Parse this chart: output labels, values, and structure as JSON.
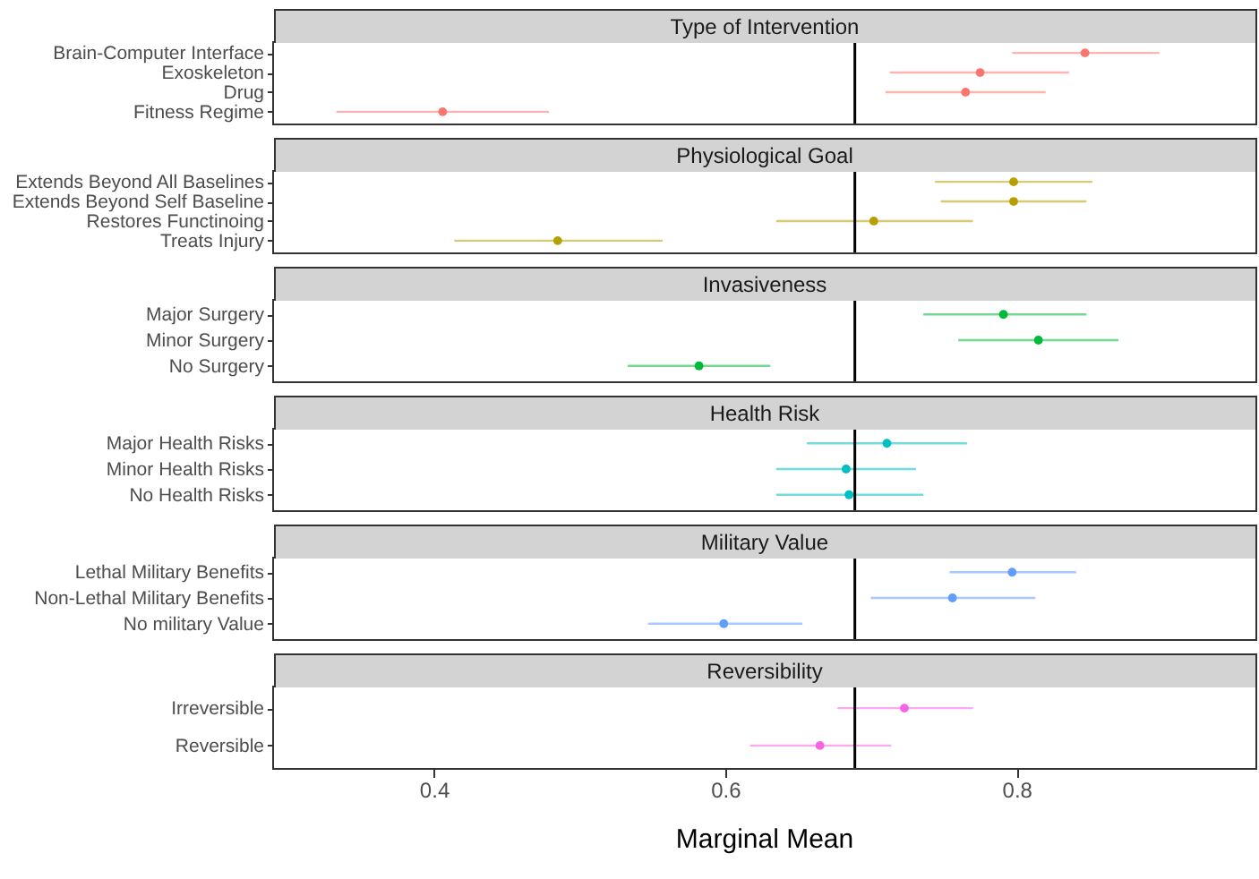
{
  "chart_data": [
    {
      "type": "scatter",
      "orientation": "horizontal",
      "title": "Type of Intervention",
      "categories": [
        "Brain-Computer Interface",
        "Exoskeleton",
        "Drug",
        "Fitness Regime"
      ],
      "values": [
        0.847,
        0.775,
        0.765,
        0.406
      ],
      "errors": [
        [
          0.797,
          0.898
        ],
        [
          0.713,
          0.836
        ],
        [
          0.71,
          0.82
        ],
        [
          0.333,
          0.479
        ]
      ],
      "color": "#f8766d",
      "xlim": [
        0.289,
        0.964
      ],
      "xticks": [
        0.4,
        0.6,
        0.8
      ],
      "ref_lines": [
        {
          "axis": "x",
          "value": 0.689,
          "color": "#000000"
        }
      ],
      "marker": "circle",
      "tick_labels": "y"
    },
    {
      "type": "scatter",
      "orientation": "horizontal",
      "title": "Physiological Goal",
      "categories": [
        "Extends Beyond All Baselines",
        "Extends Beyond Self Baseline",
        "Restores Functinoing",
        "Treats Injury"
      ],
      "values": [
        0.798,
        0.798,
        0.702,
        0.485
      ],
      "errors": [
        [
          0.744,
          0.852
        ],
        [
          0.748,
          0.848
        ],
        [
          0.635,
          0.77
        ],
        [
          0.414,
          0.557
        ]
      ],
      "color": "#b79f00",
      "xlim": [
        0.289,
        0.964
      ],
      "xticks": [
        0.4,
        0.6,
        0.8
      ],
      "ref_lines": [
        {
          "axis": "x",
          "value": 0.689,
          "color": "#000000"
        }
      ],
      "marker": "circle",
      "tick_labels": "y"
    },
    {
      "type": "scatter",
      "orientation": "horizontal",
      "title": "Invasiveness",
      "categories": [
        "Major Surgery",
        "Minor Surgery",
        "No Surgery"
      ],
      "values": [
        0.791,
        0.815,
        0.582
      ],
      "errors": [
        [
          0.736,
          0.848
        ],
        [
          0.76,
          0.87
        ],
        [
          0.533,
          0.631
        ]
      ],
      "color": "#00ba38",
      "xlim": [
        0.289,
        0.964
      ],
      "xticks": [
        0.4,
        0.6,
        0.8
      ],
      "ref_lines": [
        {
          "axis": "x",
          "value": 0.689,
          "color": "#000000"
        }
      ],
      "marker": "circle",
      "tick_labels": "y"
    },
    {
      "type": "scatter",
      "orientation": "horizontal",
      "title": "Health Risk",
      "categories": [
        "Major Health Risks",
        "Minor Health Risks",
        "No Health Risks"
      ],
      "values": [
        0.711,
        0.683,
        0.685
      ],
      "errors": [
        [
          0.656,
          0.766
        ],
        [
          0.635,
          0.731
        ],
        [
          0.635,
          0.736
        ]
      ],
      "color": "#00bfc4",
      "xlim": [
        0.289,
        0.964
      ],
      "xticks": [
        0.4,
        0.6,
        0.8
      ],
      "ref_lines": [
        {
          "axis": "x",
          "value": 0.689,
          "color": "#000000"
        }
      ],
      "marker": "circle",
      "tick_labels": "y"
    },
    {
      "type": "scatter",
      "orientation": "horizontal",
      "title": "Military Value",
      "categories": [
        "Lethal Military Benefits",
        "Non-Lethal Military Benefits",
        "No military Value"
      ],
      "values": [
        0.797,
        0.756,
        0.599
      ],
      "errors": [
        [
          0.754,
          0.841
        ],
        [
          0.7,
          0.813
        ],
        [
          0.547,
          0.653
        ]
      ],
      "color": "#619cff",
      "xlim": [
        0.289,
        0.964
      ],
      "xticks": [
        0.4,
        0.6,
        0.8
      ],
      "ref_lines": [
        {
          "axis": "x",
          "value": 0.689,
          "color": "#000000"
        }
      ],
      "marker": "circle",
      "tick_labels": "y"
    },
    {
      "type": "scatter",
      "orientation": "horizontal",
      "title": "Reversibility",
      "xlabel": "Marginal Mean",
      "categories": [
        "Irreversible",
        "Reversible"
      ],
      "values": [
        0.723,
        0.665
      ],
      "errors": [
        [
          0.677,
          0.77
        ],
        [
          0.617,
          0.714
        ]
      ],
      "color": "#f564e3",
      "xlim": [
        0.289,
        0.964
      ],
      "xticks": [
        0.4,
        0.6,
        0.8
      ],
      "ref_lines": [
        {
          "axis": "x",
          "value": 0.689,
          "color": "#000000"
        }
      ],
      "marker": "circle"
    }
  ]
}
